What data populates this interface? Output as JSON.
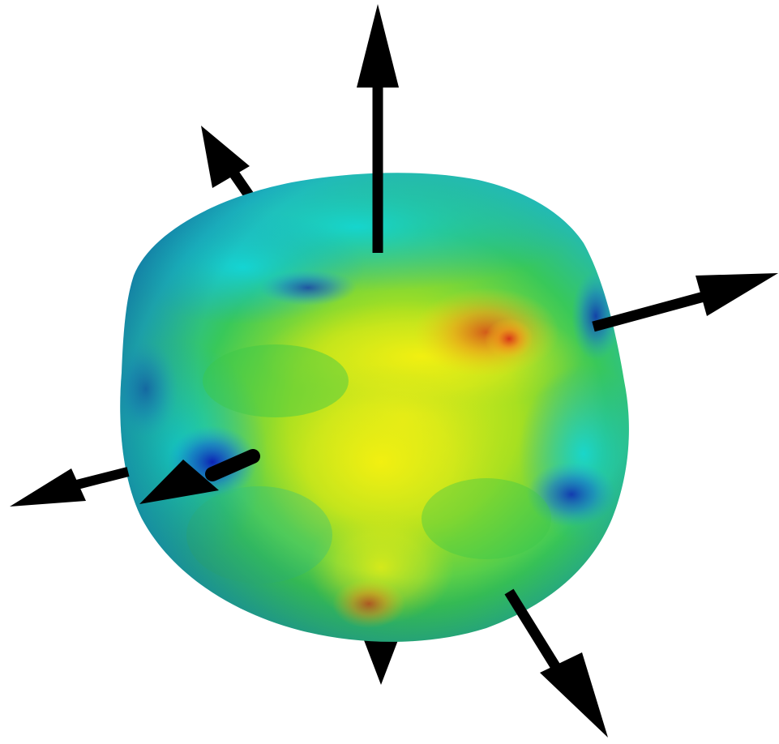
{
  "scene": {
    "background": "#ffffff",
    "arrow_color": "#000000",
    "surface_colormap": [
      "#0b22c8",
      "#1a9fe0",
      "#20d8d0",
      "#3cc84a",
      "#b8e81a",
      "#f2ea10",
      "#f0a018",
      "#d8361a"
    ],
    "object": "blob-with-normal-arrows",
    "arrow_count": 7
  }
}
